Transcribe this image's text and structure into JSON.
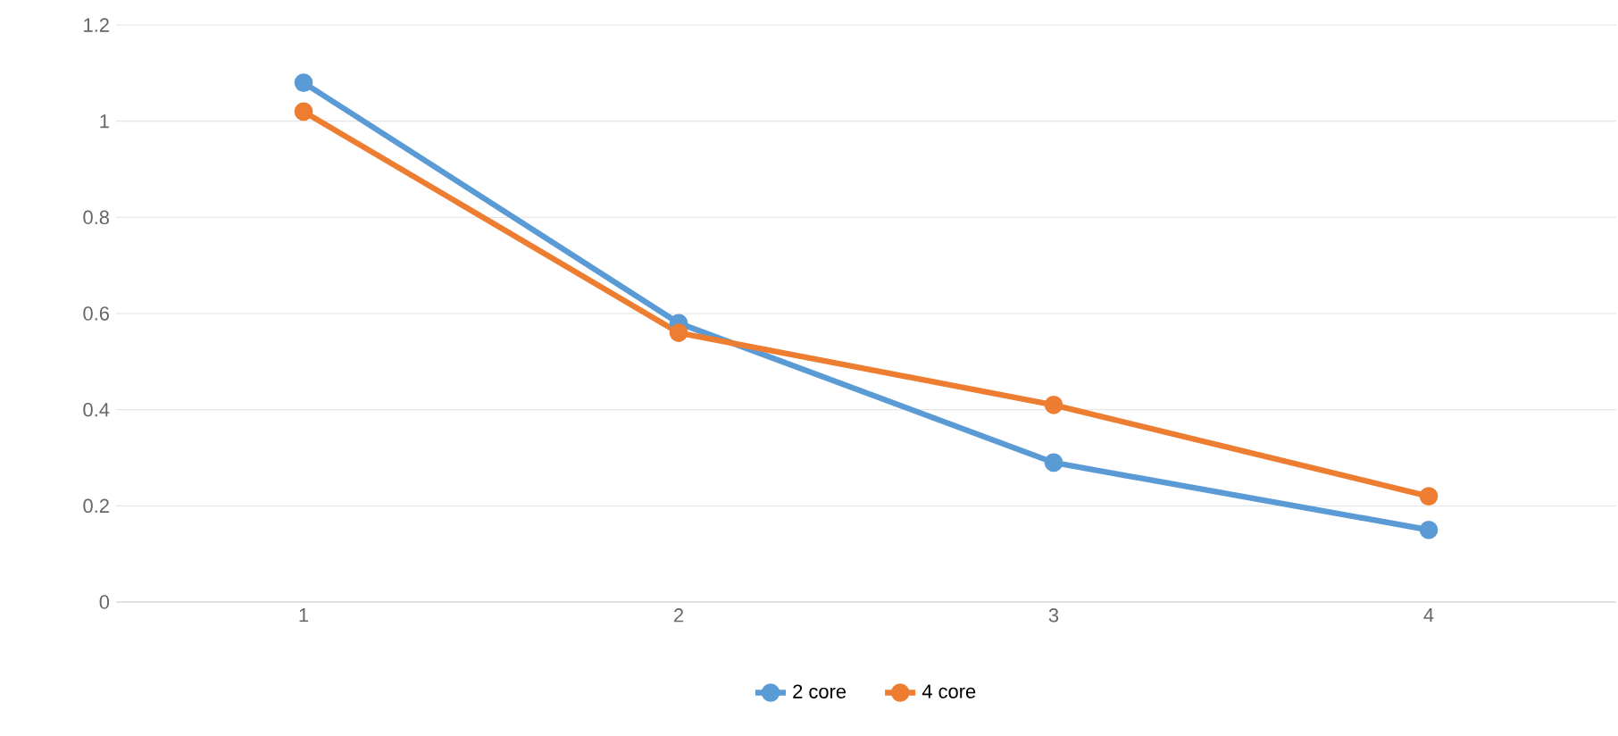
{
  "chart_data": {
    "type": "line",
    "categories": [
      "1",
      "2",
      "3",
      "4"
    ],
    "series": [
      {
        "name": "2 core",
        "color": "#5b9bd5",
        "values": [
          1.08,
          0.58,
          0.29,
          0.15
        ]
      },
      {
        "name": "4 core",
        "color": "#ed7d31",
        "values": [
          1.02,
          0.56,
          0.41,
          0.22
        ]
      }
    ],
    "ylim": [
      0,
      1.2
    ],
    "yticks": [
      0,
      0.2,
      0.4,
      0.6,
      0.8,
      1,
      1.2
    ],
    "grid": "y",
    "legend": "bottom",
    "marker": "circle",
    "line_style": "solid"
  }
}
